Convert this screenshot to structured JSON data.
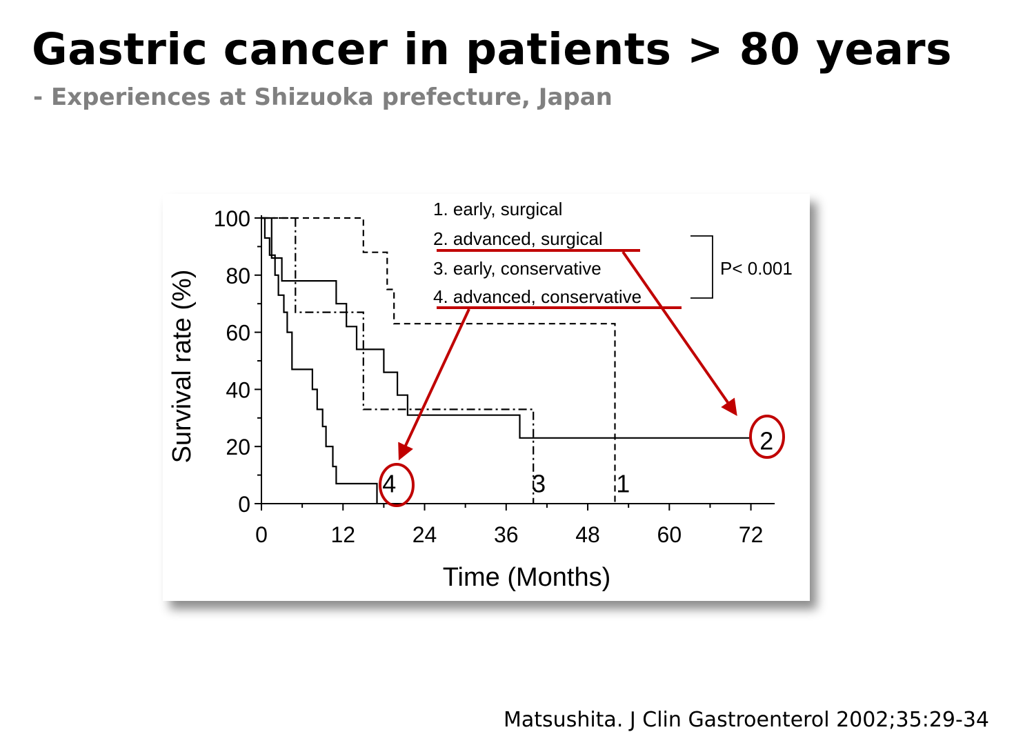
{
  "slide": {
    "title": "Gastric cancer in patients > 80 years",
    "subtitle": "- Experiences at Shizuoka prefecture, Japan",
    "citation": "Matsushita. J Clin Gastroenterol 2002;35:29-34"
  },
  "colors": {
    "annotation": "#c00000",
    "subtitle": "#808080"
  },
  "chart_data": {
    "type": "line",
    "subtype": "kaplan-meier step curves",
    "title": "",
    "xlabel": "Time (Months)",
    "ylabel": "Survival rate (%)",
    "xlim": [
      0,
      76
    ],
    "ylim": [
      0,
      100
    ],
    "xticks": [
      0,
      12,
      24,
      36,
      48,
      60,
      72
    ],
    "yticks": [
      0,
      20,
      40,
      60,
      80,
      100
    ],
    "grid": false,
    "legend": [
      "1. early, surgical",
      "2. advanced, surgical",
      "3. early, conservative",
      "4. advanced, conservative"
    ],
    "pvalue_label": "P< 0.001",
    "series": [
      {
        "name": "1. early, surgical",
        "end_label": "1",
        "line_style": "dashed",
        "points": [
          [
            0,
            100
          ],
          [
            15,
            100
          ],
          [
            15,
            88
          ],
          [
            18.5,
            88
          ],
          [
            18.5,
            75
          ],
          [
            19.5,
            75
          ],
          [
            19.5,
            63
          ],
          [
            52,
            63
          ],
          [
            52,
            0
          ]
        ]
      },
      {
        "name": "2. advanced, surgical",
        "end_label": "2",
        "line_style": "solid",
        "points": [
          [
            0,
            100
          ],
          [
            1.5,
            100
          ],
          [
            1.5,
            86
          ],
          [
            3,
            86
          ],
          [
            3,
            78
          ],
          [
            11,
            78
          ],
          [
            11,
            70
          ],
          [
            12.5,
            70
          ],
          [
            12.5,
            62
          ],
          [
            14,
            62
          ],
          [
            14,
            54
          ],
          [
            18,
            54
          ],
          [
            18,
            46
          ],
          [
            20,
            46
          ],
          [
            20,
            38
          ],
          [
            21.5,
            38
          ],
          [
            21.5,
            31
          ],
          [
            38,
            31
          ],
          [
            38,
            23
          ],
          [
            72,
            23
          ]
        ]
      },
      {
        "name": "3. early, conservative",
        "end_label": "3",
        "line_style": "dash-dot",
        "points": [
          [
            0,
            100
          ],
          [
            5,
            100
          ],
          [
            5,
            67
          ],
          [
            15,
            67
          ],
          [
            15,
            33
          ],
          [
            40,
            33
          ],
          [
            40,
            0
          ]
        ]
      },
      {
        "name": "4. advanced, conservative",
        "end_label": "4",
        "line_style": "solid",
        "points": [
          [
            0,
            100
          ],
          [
            0.5,
            100
          ],
          [
            0.5,
            93
          ],
          [
            1.2,
            93
          ],
          [
            1.2,
            87
          ],
          [
            2,
            87
          ],
          [
            2,
            80
          ],
          [
            2.5,
            80
          ],
          [
            2.5,
            73
          ],
          [
            3.3,
            73
          ],
          [
            3.3,
            67
          ],
          [
            3.8,
            67
          ],
          [
            3.8,
            60
          ],
          [
            4.5,
            60
          ],
          [
            4.5,
            47
          ],
          [
            7.5,
            47
          ],
          [
            7.5,
            40
          ],
          [
            8.2,
            40
          ],
          [
            8.2,
            33
          ],
          [
            9,
            33
          ],
          [
            9,
            27
          ],
          [
            9.5,
            27
          ],
          [
            9.5,
            20
          ],
          [
            10.5,
            20
          ],
          [
            10.5,
            13
          ],
          [
            11,
            13
          ],
          [
            11,
            7
          ],
          [
            17,
            7
          ],
          [
            17,
            0
          ]
        ]
      }
    ]
  }
}
